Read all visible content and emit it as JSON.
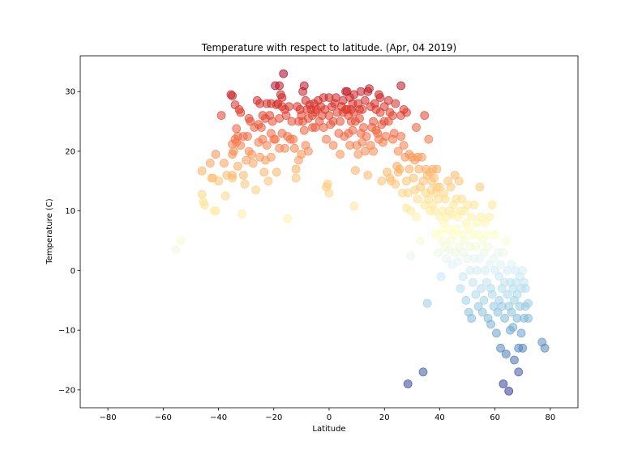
{
  "chart_data": {
    "type": "scatter",
    "title": "Temperature with respect to latitude. (Apr, 04 2019)",
    "xlabel": "Latitude",
    "ylabel": "Temperature (C)",
    "xlim": [
      -90,
      90
    ],
    "ylim": [
      -23,
      36
    ],
    "xticks": [
      -80,
      -60,
      -40,
      -20,
      0,
      20,
      40,
      60,
      80
    ],
    "yticks": [
      -20,
      -10,
      0,
      10,
      20,
      30
    ],
    "grid": false,
    "colormap": "RdYlBu_r",
    "color_range": [
      -20,
      33
    ],
    "marker_alpha": 0.55,
    "points": [
      [
        -55.5,
        3.5
      ],
      [
        -53.5,
        5
      ],
      [
        -46,
        16.7
      ],
      [
        -46,
        12.8
      ],
      [
        -45.5,
        11.5
      ],
      [
        -45,
        11
      ],
      [
        -43,
        18
      ],
      [
        -42.5,
        15.5
      ],
      [
        -42,
        15.5
      ],
      [
        -41.5,
        10
      ],
      [
        -41,
        10
      ],
      [
        -41,
        19.5
      ],
      [
        -40,
        15
      ],
      [
        -39,
        26
      ],
      [
        -38,
        18
      ],
      [
        -37.5,
        12.5
      ],
      [
        -37,
        16
      ],
      [
        -35.5,
        29.5
      ],
      [
        -35,
        29.3
      ],
      [
        -35,
        21.2
      ],
      [
        -35,
        19.5
      ],
      [
        -35,
        16
      ],
      [
        -35,
        15.5
      ],
      [
        -34.5,
        20
      ],
      [
        -34,
        22
      ],
      [
        -34,
        27.8
      ],
      [
        -33.5,
        21.5
      ],
      [
        -33.5,
        23.8
      ],
      [
        -33,
        22.5
      ],
      [
        -33,
        17.5
      ],
      [
        -32.5,
        27
      ],
      [
        -32,
        26.5
      ],
      [
        -32,
        21
      ],
      [
        -31.5,
        9.5
      ],
      [
        -31,
        22.5
      ],
      [
        -31,
        16
      ],
      [
        -30.5,
        14.5
      ],
      [
        -30,
        18.5
      ],
      [
        -29.5,
        22.5
      ],
      [
        -29,
        25.5
      ],
      [
        -29,
        20
      ],
      [
        -28.5,
        25
      ],
      [
        -28,
        19.5
      ],
      [
        -27.5,
        18
      ],
      [
        -27,
        24
      ],
      [
        -26.5,
        13.5
      ],
      [
        -26,
        28.5
      ],
      [
        -25.5,
        24.5
      ],
      [
        -25.5,
        21.5
      ],
      [
        -25,
        28
      ],
      [
        -25,
        19
      ],
      [
        -24.5,
        24
      ],
      [
        -24,
        26
      ],
      [
        -24,
        22
      ],
      [
        -23.5,
        16.5
      ],
      [
        -23,
        25.5
      ],
      [
        -23,
        18.5
      ],
      [
        -22.5,
        28
      ],
      [
        -22.5,
        21
      ],
      [
        -22,
        15
      ],
      [
        -21.5,
        26
      ],
      [
        -21,
        28
      ],
      [
        -21,
        23
      ],
      [
        -21,
        19
      ],
      [
        -20.5,
        25
      ],
      [
        -20,
        22
      ],
      [
        -19.5,
        31
      ],
      [
        -19.5,
        22
      ],
      [
        -19,
        27.8
      ],
      [
        -19,
        16.5
      ],
      [
        -18.5,
        28
      ],
      [
        -18,
        31
      ],
      [
        -18,
        25.5
      ],
      [
        -18,
        20.5
      ],
      [
        -17.5,
        29.5
      ],
      [
        -17,
        29
      ],
      [
        -17,
        27.5
      ],
      [
        -17,
        23
      ],
      [
        -16.5,
        33
      ],
      [
        -16,
        27
      ],
      [
        -16,
        20.5
      ],
      [
        -15.5,
        26
      ],
      [
        -15,
        22.5
      ],
      [
        -15,
        8.7
      ],
      [
        -14.5,
        27.5
      ],
      [
        -14,
        22
      ],
      [
        -13.5,
        25
      ],
      [
        -13,
        22
      ],
      [
        -12.5,
        20.5
      ],
      [
        -12,
        15.5
      ],
      [
        -12,
        17
      ],
      [
        -11.5,
        27.5
      ],
      [
        -11,
        25
      ],
      [
        -11,
        18.5
      ],
      [
        -10.5,
        27
      ],
      [
        -10,
        26
      ],
      [
        -10,
        19.5
      ],
      [
        -9.5,
        30
      ],
      [
        -9.5,
        25
      ],
      [
        -9,
        31
      ],
      [
        -9,
        23.5
      ],
      [
        -8.5,
        28.5
      ],
      [
        -8.5,
        21
      ],
      [
        -8,
        27
      ],
      [
        -7.5,
        25.5
      ],
      [
        -7.5,
        20
      ],
      [
        -7,
        27.8
      ],
      [
        -6.5,
        27
      ],
      [
        -6,
        24
      ],
      [
        -6,
        26
      ],
      [
        -5.5,
        28
      ],
      [
        -5,
        26.5
      ],
      [
        -5,
        24
      ],
      [
        -4.5,
        27
      ],
      [
        -4,
        28.5
      ],
      [
        -3.5,
        25
      ],
      [
        -3,
        27.5
      ],
      [
        -2.5,
        26
      ],
      [
        -2,
        29
      ],
      [
        -2,
        24
      ],
      [
        -1.5,
        27
      ],
      [
        -1,
        22
      ],
      [
        -1,
        14
      ],
      [
        -0.5,
        14.5
      ],
      [
        0,
        13
      ],
      [
        0,
        26
      ],
      [
        0,
        29
      ],
      [
        0.5,
        24.5
      ],
      [
        1,
        27.5
      ],
      [
        1.5,
        25
      ],
      [
        1.5,
        21
      ],
      [
        2,
        28
      ],
      [
        2.5,
        29
      ],
      [
        3,
        26.5
      ],
      [
        3.5,
        23
      ],
      [
        4,
        25
      ],
      [
        4,
        19.5
      ],
      [
        4.5,
        27.5
      ],
      [
        5,
        28.5
      ],
      [
        5,
        26.5
      ],
      [
        5.5,
        22.5
      ],
      [
        6,
        30
      ],
      [
        6,
        27
      ],
      [
        6.5,
        30
      ],
      [
        6.5,
        27
      ],
      [
        7,
        26
      ],
      [
        7,
        23
      ],
      [
        7.5,
        29
      ],
      [
        7.5,
        21
      ],
      [
        8,
        27
      ],
      [
        8,
        25
      ],
      [
        8.5,
        28
      ],
      [
        8.5,
        23.5
      ],
      [
        9,
        10.8
      ],
      [
        9,
        29.5
      ],
      [
        9,
        26.5
      ],
      [
        9.5,
        25
      ],
      [
        9.5,
        16.8
      ],
      [
        10,
        21
      ],
      [
        10.5,
        19.5
      ],
      [
        10.5,
        28
      ],
      [
        11,
        27
      ],
      [
        11,
        25.5
      ],
      [
        11.5,
        30
      ],
      [
        11.5,
        23
      ],
      [
        12,
        27
      ],
      [
        12,
        21.5
      ],
      [
        12.5,
        24
      ],
      [
        13,
        28.5
      ],
      [
        13,
        20
      ],
      [
        13.5,
        22.5
      ],
      [
        14,
        30
      ],
      [
        14,
        16
      ],
      [
        14.5,
        30.5
      ],
      [
        15,
        27.5
      ],
      [
        15,
        21
      ],
      [
        15.5,
        24
      ],
      [
        16,
        25
      ],
      [
        16,
        20
      ],
      [
        16.5,
        28
      ],
      [
        17,
        27
      ],
      [
        17,
        23.5
      ],
      [
        17.5,
        23
      ],
      [
        18,
        29.5
      ],
      [
        18,
        22
      ],
      [
        18.5,
        29
      ],
      [
        18.5,
        26.5
      ],
      [
        19,
        15
      ],
      [
        19,
        24.5
      ],
      [
        19.5,
        21.5
      ],
      [
        20,
        27.5
      ],
      [
        20,
        25
      ],
      [
        20.5,
        22.5
      ],
      [
        21,
        16.5
      ],
      [
        21.5,
        25
      ],
      [
        21.5,
        28.5
      ],
      [
        22,
        15.5
      ],
      [
        22,
        26.5
      ],
      [
        22.5,
        15
      ],
      [
        23,
        22
      ],
      [
        23,
        26
      ],
      [
        23.5,
        23
      ],
      [
        24,
        14.5
      ],
      [
        24,
        28
      ],
      [
        24.5,
        17.5
      ],
      [
        25,
        20
      ],
      [
        25,
        16.5
      ],
      [
        25.5,
        17
      ],
      [
        26,
        26
      ],
      [
        26,
        31
      ],
      [
        26,
        22.5
      ],
      [
        26.5,
        13
      ],
      [
        27,
        27
      ],
      [
        27,
        21
      ],
      [
        27.5,
        19
      ],
      [
        28,
        26.5
      ],
      [
        28,
        15
      ],
      [
        28,
        10.5
      ],
      [
        28.5,
        13
      ],
      [
        28.5,
        -19
      ],
      [
        29,
        19.5
      ],
      [
        29,
        17
      ],
      [
        29.5,
        10
      ],
      [
        29.5,
        2.5
      ],
      [
        30,
        19
      ],
      [
        30.5,
        15.5
      ],
      [
        31,
        18.5
      ],
      [
        31,
        13.5
      ],
      [
        31.5,
        24
      ],
      [
        31.5,
        9
      ],
      [
        32,
        19
      ],
      [
        32,
        12
      ],
      [
        32.5,
        17
      ],
      [
        33,
        14
      ],
      [
        33,
        5
      ],
      [
        33.5,
        19
      ],
      [
        34,
        15
      ],
      [
        34,
        -17
      ],
      [
        34.5,
        26
      ],
      [
        34.5,
        11
      ],
      [
        35,
        17
      ],
      [
        35,
        13
      ],
      [
        35.5,
        16
      ],
      [
        35.5,
        -5.5
      ],
      [
        36,
        22
      ],
      [
        36,
        12
      ],
      [
        36.5,
        16.5
      ],
      [
        36.5,
        10
      ],
      [
        37,
        15
      ],
      [
        37,
        13.5
      ],
      [
        37.5,
        17
      ],
      [
        37.5,
        11
      ],
      [
        38,
        15.5
      ],
      [
        38,
        10
      ],
      [
        38.5,
        13
      ],
      [
        38.5,
        6
      ],
      [
        39,
        17
      ],
      [
        39,
        14
      ],
      [
        39.5,
        12
      ],
      [
        39.5,
        3
      ],
      [
        40,
        14
      ],
      [
        40,
        9
      ],
      [
        40.5,
        -1
      ],
      [
        40.5,
        6.5
      ],
      [
        41,
        10
      ],
      [
        41,
        5
      ],
      [
        41.5,
        13
      ],
      [
        41.5,
        8
      ],
      [
        42,
        12
      ],
      [
        42,
        4
      ],
      [
        42.5,
        9
      ],
      [
        42.5,
        2
      ],
      [
        43,
        15
      ],
      [
        43,
        7
      ],
      [
        43.5,
        10
      ],
      [
        43.5,
        3.5
      ],
      [
        44,
        14
      ],
      [
        44,
        5
      ],
      [
        44.5,
        9.5
      ],
      [
        44.5,
        1
      ],
      [
        45,
        11
      ],
      [
        45,
        6
      ],
      [
        45.5,
        16
      ],
      [
        45.5,
        3
      ],
      [
        46,
        12
      ],
      [
        46,
        7
      ],
      [
        46.5,
        9
      ],
      [
        46.5,
        1.5
      ],
      [
        47,
        15
      ],
      [
        47,
        4
      ],
      [
        47.5,
        10
      ],
      [
        47.5,
        -3
      ],
      [
        48,
        12
      ],
      [
        48,
        6
      ],
      [
        48.5,
        3
      ],
      [
        48.5,
        -1
      ],
      [
        49,
        10
      ],
      [
        49,
        5
      ],
      [
        49.5,
        8
      ],
      [
        49.5,
        -5
      ],
      [
        50,
        11
      ],
      [
        50,
        2
      ],
      [
        50.5,
        7
      ],
      [
        50.5,
        -7
      ],
      [
        51,
        4
      ],
      [
        51,
        0
      ],
      [
        51.5,
        9
      ],
      [
        51.5,
        -8
      ],
      [
        52,
        6
      ],
      [
        52,
        -2
      ],
      [
        52.5,
        11
      ],
      [
        52.5,
        2
      ],
      [
        53,
        4
      ],
      [
        53,
        -4
      ],
      [
        53.5,
        8
      ],
      [
        53.5,
        0
      ],
      [
        54,
        6
      ],
      [
        54,
        -6
      ],
      [
        54.5,
        14
      ],
      [
        54.5,
        2
      ],
      [
        55,
        9
      ],
      [
        55,
        -3
      ],
      [
        55.5,
        5
      ],
      [
        55.5,
        -7
      ],
      [
        56,
        3
      ],
      [
        56,
        -5
      ],
      [
        56.5,
        8
      ],
      [
        56.5,
        0
      ],
      [
        57,
        6
      ],
      [
        57,
        -2
      ],
      [
        57.5,
        4
      ],
      [
        57.5,
        -8
      ],
      [
        58,
        9
      ],
      [
        58,
        1
      ],
      [
        58.5,
        -3
      ],
      [
        58.5,
        -9
      ],
      [
        59,
        11
      ],
      [
        59,
        -4
      ],
      [
        59.5,
        2
      ],
      [
        59.5,
        -6
      ],
      [
        60,
        6
      ],
      [
        60,
        0
      ],
      [
        60.5,
        -10.5
      ],
      [
        61,
        3
      ],
      [
        61,
        -7
      ],
      [
        61.5,
        -1
      ],
      [
        61.5,
        -5
      ],
      [
        62,
        -13
      ],
      [
        62,
        1
      ],
      [
        62.5,
        -3
      ],
      [
        62.5,
        -6
      ],
      [
        63,
        3
      ],
      [
        63,
        -19
      ],
      [
        63.5,
        -2
      ],
      [
        63.5,
        -8
      ],
      [
        64,
        5
      ],
      [
        64,
        -14
      ],
      [
        64.5,
        0
      ],
      [
        64.5,
        -4
      ],
      [
        65,
        -6
      ],
      [
        65,
        -20.2
      ],
      [
        65.5,
        -2
      ],
      [
        65.5,
        -10
      ],
      [
        66,
        1
      ],
      [
        66,
        -7
      ],
      [
        66.5,
        -3
      ],
      [
        66.5,
        -9.5
      ],
      [
        67,
        -5
      ],
      [
        67,
        -15
      ],
      [
        67.5,
        0
      ],
      [
        67.5,
        -2
      ],
      [
        68,
        -4
      ],
      [
        68,
        -8
      ],
      [
        68.5,
        -13
      ],
      [
        68.5,
        -17
      ],
      [
        69,
        -1
      ],
      [
        69,
        -6
      ],
      [
        69.5,
        -3
      ],
      [
        69.5,
        -10.5
      ],
      [
        70,
        0
      ],
      [
        70,
        -13
      ],
      [
        70.5,
        -2
      ],
      [
        70.5,
        -8
      ],
      [
        71,
        -6
      ],
      [
        71,
        -3
      ],
      [
        72,
        -5.5
      ],
      [
        72,
        -8
      ],
      [
        77,
        -12
      ],
      [
        78,
        -13
      ]
    ]
  }
}
